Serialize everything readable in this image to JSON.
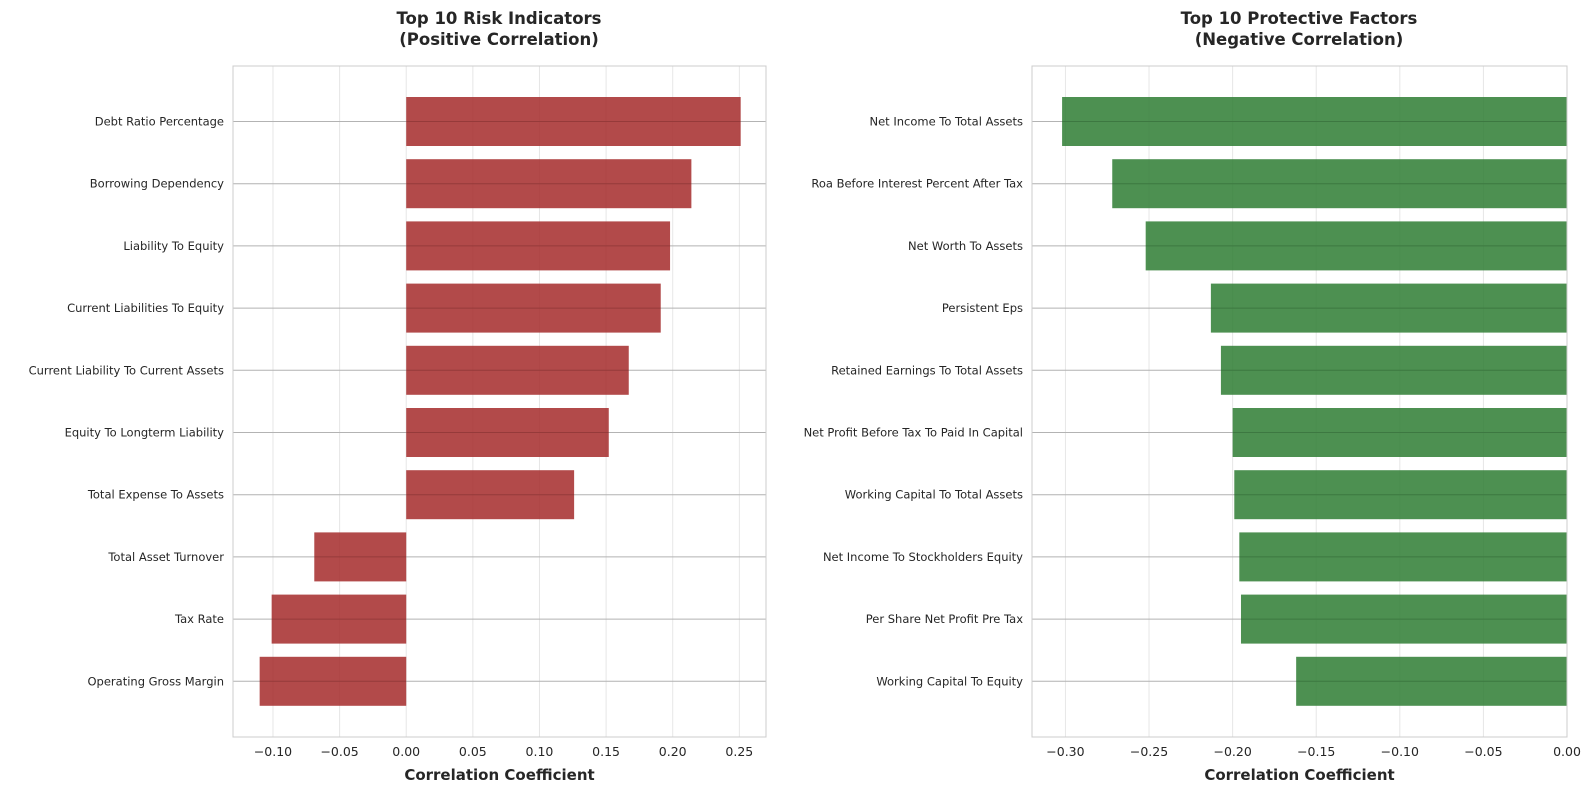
{
  "chart_data": [
    {
      "type": "bar",
      "orientation": "horizontal",
      "title": "Top 10 Risk Indicators\n(Positive Correlation)",
      "xlabel": "Correlation Coefficient",
      "ylabel": "",
      "xlim": [
        -0.13,
        0.27
      ],
      "xticks": [
        -0.1,
        -0.05,
        0.0,
        0.05,
        0.1,
        0.15,
        0.2,
        0.25
      ],
      "xtick_labels": [
        "−0.10",
        "−0.05",
        "0.00",
        "0.05",
        "0.10",
        "0.15",
        "0.20",
        "0.25"
      ],
      "grid": true,
      "bar_color": "#a52a2a",
      "categories": [
        "Debt Ratio Percentage",
        "Borrowing Dependency",
        "Liability To Equity",
        "Current Liabilities To Equity",
        "Current Liability To Current Assets",
        "Equity To Longterm Liability",
        "Total Expense To Assets",
        "Total Asset Turnover",
        "Tax Rate",
        "Operating Gross Margin"
      ],
      "values": [
        0.251,
        0.214,
        0.198,
        0.191,
        0.167,
        0.152,
        0.126,
        -0.069,
        -0.101,
        -0.11
      ]
    },
    {
      "type": "bar",
      "orientation": "horizontal",
      "title": "Top 10 Protective Factors\n(Negative Correlation)",
      "xlabel": "Correlation Coefficient",
      "ylabel": "",
      "xlim": [
        -0.32,
        0.0
      ],
      "xticks": [
        -0.3,
        -0.25,
        -0.2,
        -0.15,
        -0.1,
        -0.05,
        0.0
      ],
      "xtick_labels": [
        "−0.30",
        "−0.25",
        "−0.20",
        "−0.15",
        "−0.10",
        "−0.05",
        "0.00"
      ],
      "grid": true,
      "bar_color": "#2e7d32",
      "categories": [
        "Net Income To Total Assets",
        "Roa Before Interest Percent After Tax",
        "Net Worth To Assets",
        "Persistent Eps",
        "Retained Earnings To Total Assets",
        "Net Profit Before Tax To Paid In Capital",
        "Working Capital To Total Assets",
        "Net Income To Stockholders Equity",
        "Per Share Net Profit Pre Tax",
        "Working Capital To Equity"
      ],
      "values": [
        -0.302,
        -0.272,
        -0.252,
        -0.213,
        -0.207,
        -0.2,
        -0.199,
        -0.196,
        -0.195,
        -0.162
      ]
    }
  ]
}
